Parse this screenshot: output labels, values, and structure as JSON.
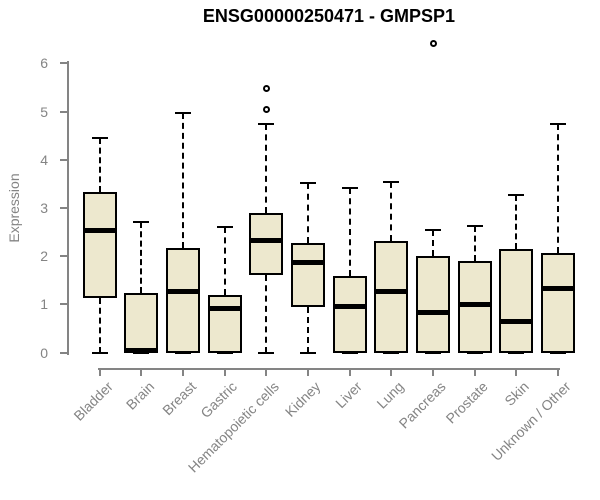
{
  "chart_data": {
    "type": "boxplot",
    "title": "ENSG00000250471 - GMPSP1",
    "xlabel": "",
    "ylabel": "Expression",
    "ylim": [
      0,
      6
    ],
    "yticks": [
      0,
      1,
      2,
      3,
      4,
      5,
      6
    ],
    "grid": false,
    "legend": false,
    "categories": [
      "Bladder",
      "Brain",
      "Breast",
      "Gastric",
      "Hematopoietic cells",
      "Kidney",
      "Liver",
      "Lung",
      "Pancreas",
      "Prostate",
      "Skin",
      "Unknown / Other"
    ],
    "boxes": [
      {
        "category": "Bladder",
        "whisker_low": 0,
        "q1": 1.13,
        "median": 2.54,
        "q3": 3.34,
        "whisker_high": 4.46,
        "outliers": []
      },
      {
        "category": "Brain",
        "whisker_low": 0,
        "q1": 0,
        "median": 0.05,
        "q3": 1.24,
        "whisker_high": 2.71,
        "outliers": []
      },
      {
        "category": "Breast",
        "whisker_low": 0,
        "q1": 0,
        "median": 1.28,
        "q3": 2.17,
        "whisker_high": 4.97,
        "outliers": []
      },
      {
        "category": "Gastric",
        "whisker_low": 0,
        "q1": 0,
        "median": 0.93,
        "q3": 1.19,
        "whisker_high": 2.61,
        "outliers": []
      },
      {
        "category": "Hematopoietic cells",
        "whisker_low": 0,
        "q1": 1.61,
        "median": 2.34,
        "q3": 2.89,
        "whisker_high": 4.74,
        "outliers": [
          5.05,
          5.49
        ]
      },
      {
        "category": "Kidney",
        "whisker_low": 0,
        "q1": 0.95,
        "median": 1.89,
        "q3": 2.27,
        "whisker_high": 3.51,
        "outliers": []
      },
      {
        "category": "Liver",
        "whisker_low": 0,
        "q1": 0,
        "median": 0.97,
        "q3": 1.58,
        "whisker_high": 3.41,
        "outliers": []
      },
      {
        "category": "Lung",
        "whisker_low": 0,
        "q1": 0,
        "median": 1.28,
        "q3": 2.32,
        "whisker_high": 3.54,
        "outliers": []
      },
      {
        "category": "Pancreas",
        "whisker_low": 0,
        "q1": 0,
        "median": 0.84,
        "q3": 2.01,
        "whisker_high": 2.54,
        "outliers": [
          6.43
        ]
      },
      {
        "category": "Prostate",
        "whisker_low": 0,
        "q1": 0,
        "median": 1.02,
        "q3": 1.9,
        "whisker_high": 2.62,
        "outliers": []
      },
      {
        "category": "Skin",
        "whisker_low": 0,
        "q1": 0,
        "median": 0.66,
        "q3": 2.14,
        "whisker_high": 3.27,
        "outliers": []
      },
      {
        "category": "Unknown / Other",
        "whisker_low": 0,
        "q1": 0,
        "median": 1.34,
        "q3": 2.06,
        "whisker_high": 4.74,
        "outliers": []
      }
    ],
    "colors": {
      "box_fill": "#EDE8CE",
      "box_border": "#000000",
      "median": "#000000",
      "whisker": "#000000",
      "axis": "#848484",
      "tick_label": "#848484",
      "title": "#000000",
      "background": "#FFFFFF"
    }
  }
}
